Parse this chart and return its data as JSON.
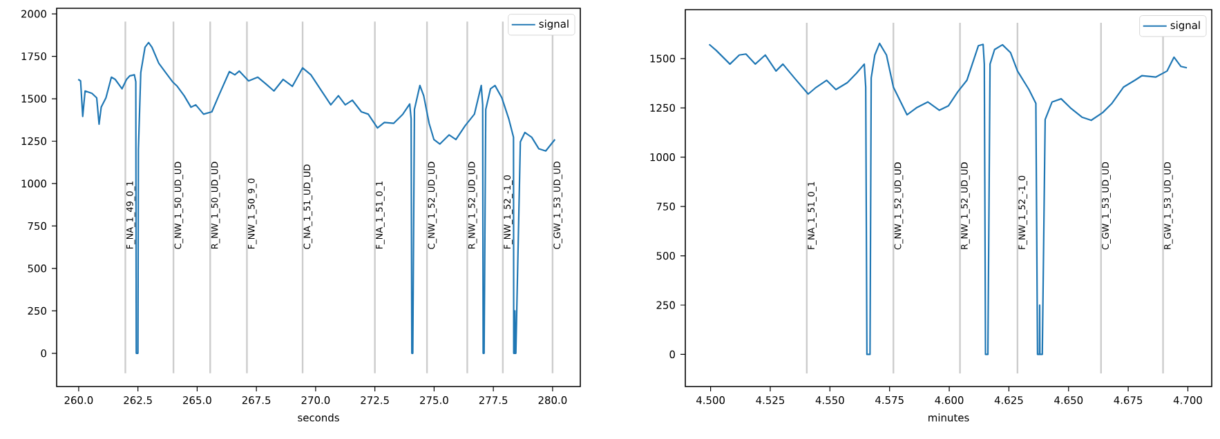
{
  "chart_data": [
    {
      "type": "line",
      "xlabel": "seconds",
      "xlim": [
        259.07,
        281.17
      ],
      "ylim": [
        -196,
        2033
      ],
      "xticks": [
        {
          "value": 260,
          "label": "260.0"
        },
        {
          "value": 262.5,
          "label": "262.5"
        },
        {
          "value": 265,
          "label": "265.0"
        },
        {
          "value": 267.5,
          "label": "267.5"
        },
        {
          "value": 270,
          "label": "270.0"
        },
        {
          "value": 272.5,
          "label": "272.5"
        },
        {
          "value": 275,
          "label": "275.0"
        },
        {
          "value": 277.5,
          "label": "277.5"
        },
        {
          "value": 280,
          "label": "280.0"
        }
      ],
      "yticks": [
        0,
        250,
        500,
        750,
        1000,
        1250,
        1500,
        1750,
        2000
      ],
      "legend": "top right",
      "marker": "none",
      "line_style": "solid",
      "grid": false,
      "series": [
        {
          "name": "signal",
          "color": "#1f77b4",
          "x": [
            259.98,
            260.08,
            260.17,
            260.27,
            260.56,
            260.76,
            260.86,
            260.95,
            261.15,
            261.38,
            261.54,
            261.83,
            262.02,
            262.16,
            262.35,
            262.41,
            262.43,
            262.5,
            262.52,
            262.62,
            262.8,
            262.95,
            263.09,
            263.38,
            263.67,
            263.96,
            264.16,
            264.45,
            264.74,
            264.94,
            265.27,
            265.62,
            265.91,
            266.36,
            266.59,
            266.78,
            267.17,
            267.56,
            267.91,
            268.24,
            268.63,
            269.02,
            269.45,
            269.8,
            270.19,
            270.64,
            270.96,
            271.25,
            271.55,
            271.93,
            272.22,
            272.61,
            272.9,
            273.29,
            273.68,
            273.97,
            274.03,
            274.06,
            274.1,
            274.17,
            274.4,
            274.56,
            274.79,
            274.99,
            275.24,
            275.63,
            275.92,
            276.31,
            276.7,
            276.99,
            277.05,
            277.07,
            277.11,
            277.18,
            277.38,
            277.57,
            277.86,
            278.15,
            278.35,
            278.36,
            278.4,
            278.41,
            278.42,
            278.45,
            278.64,
            278.83,
            279.12,
            279.42,
            279.71,
            280.1
          ],
          "values": [
            1614,
            1605,
            1396,
            1546,
            1532,
            1505,
            1350,
            1450,
            1505,
            1627,
            1614,
            1559,
            1614,
            1635,
            1641,
            1600,
            0,
            0,
            1200,
            1654,
            1804,
            1831,
            1804,
            1709,
            1654,
            1600,
            1573,
            1518,
            1450,
            1464,
            1409,
            1423,
            1518,
            1660,
            1641,
            1663,
            1605,
            1627,
            1586,
            1546,
            1614,
            1573,
            1682,
            1641,
            1559,
            1464,
            1518,
            1464,
            1491,
            1423,
            1409,
            1328,
            1360,
            1355,
            1409,
            1469,
            1382,
            0,
            0,
            1437,
            1578,
            1518,
            1355,
            1260,
            1233,
            1287,
            1260,
            1341,
            1409,
            1578,
            1464,
            0,
            0,
            1437,
            1559,
            1578,
            1505,
            1382,
            1273,
            0,
            0,
            250,
            0,
            0,
            1246,
            1301,
            1273,
            1205,
            1192,
            1260
          ]
        }
      ],
      "ref_lines": [
        {
          "axis": "x",
          "value": 261.97,
          "label": "F_NA_1_49_0_1",
          "color": "#cccccc"
        },
        {
          "axis": "x",
          "value": 264.0,
          "label": "C_NW_1_50_UD_UD",
          "color": "#cccccc"
        },
        {
          "axis": "x",
          "value": 265.55,
          "label": "R_NW_1_50_UD_UD",
          "color": "#cccccc"
        },
        {
          "axis": "x",
          "value": 267.1,
          "label": "F_NW_1_50_9_0",
          "color": "#cccccc"
        },
        {
          "axis": "x",
          "value": 269.45,
          "label": "C_NA_1_51_UD_UD",
          "color": "#cccccc"
        },
        {
          "axis": "x",
          "value": 272.5,
          "label": "F_NA_1_51_0_1",
          "color": "#cccccc"
        },
        {
          "axis": "x",
          "value": 274.7,
          "label": "C_NW_1_52_UD_UD",
          "color": "#cccccc"
        },
        {
          "axis": "x",
          "value": 276.4,
          "label": "R_NW_1_52_UD_UD",
          "color": "#cccccc"
        },
        {
          "axis": "x",
          "value": 277.9,
          "label": "F_NW_1_52_-1_0",
          "color": "#cccccc"
        },
        {
          "axis": "x",
          "value": 280.0,
          "label": "C_GW_1_53_UD_UD",
          "color": "#cccccc"
        }
      ]
    },
    {
      "type": "line",
      "xlabel": "minutes",
      "xlim": [
        4.4894,
        4.71
      ],
      "ylim": [
        -163,
        1748
      ],
      "xticks": [
        {
          "value": 4.5,
          "label": "4.500"
        },
        {
          "value": 4.525,
          "label": "4.525"
        },
        {
          "value": 4.55,
          "label": "4.550"
        },
        {
          "value": 4.575,
          "label": "4.575"
        },
        {
          "value": 4.6,
          "label": "4.600"
        },
        {
          "value": 4.625,
          "label": "4.625"
        },
        {
          "value": 4.65,
          "label": "4.650"
        },
        {
          "value": 4.675,
          "label": "4.675"
        },
        {
          "value": 4.7,
          "label": "4.700"
        }
      ],
      "yticks": [
        0,
        250,
        500,
        750,
        1000,
        1250,
        1500
      ],
      "legend": "top right",
      "marker": "none",
      "line_style": "solid",
      "grid": false,
      "series": [
        {
          "name": "signal",
          "color": "#1f77b4",
          "x": [
            4.4994,
            4.5023,
            4.5081,
            4.512,
            4.5148,
            4.5187,
            4.5229,
            4.5274,
            4.5303,
            4.5351,
            4.5409,
            4.5438,
            4.5486,
            4.5525,
            4.5573,
            4.5611,
            4.5644,
            4.565,
            4.5655,
            4.5668,
            4.5673,
            4.5688,
            4.5708,
            4.5737,
            4.5766,
            4.5823,
            4.5862,
            4.591,
            4.5958,
            4.5997,
            4.6036,
            4.6074,
            4.6122,
            4.6142,
            4.6147,
            4.6152,
            4.6162,
            4.6171,
            4.619,
            4.6223,
            4.6257,
            4.6286,
            4.6334,
            4.6363,
            4.637,
            4.6378,
            4.6379,
            4.638,
            4.639,
            4.6402,
            4.6431,
            4.6469,
            4.6508,
            4.6556,
            4.6595,
            4.6643,
            4.6682,
            4.673,
            4.6778,
            4.6807,
            4.6865,
            4.6913,
            4.6942,
            4.6971,
            4.6996
          ],
          "values": [
            1572,
            1542,
            1472,
            1518,
            1523,
            1472,
            1518,
            1437,
            1472,
            1402,
            1320,
            1350,
            1390,
            1343,
            1378,
            1425,
            1472,
            1355,
            0,
            0,
            1402,
            1518,
            1577,
            1518,
            1355,
            1215,
            1250,
            1280,
            1238,
            1261,
            1332,
            1390,
            1565,
            1572,
            1472,
            0,
            0,
            1472,
            1546,
            1570,
            1530,
            1437,
            1343,
            1273,
            0,
            0,
            250,
            0,
            0,
            1191,
            1280,
            1296,
            1250,
            1203,
            1187,
            1226,
            1273,
            1355,
            1390,
            1413,
            1406,
            1437,
            1507,
            1460,
            1453
          ]
        }
      ],
      "ref_lines": [
        {
          "axis": "x",
          "value": 4.5403,
          "label": "F_NA_1_51_0_1",
          "color": "#cccccc"
        },
        {
          "axis": "x",
          "value": 4.5766,
          "label": "C_NW_1_52_UD_UD",
          "color": "#cccccc"
        },
        {
          "axis": "x",
          "value": 4.6045,
          "label": "R_NW_1_52_UD_UD",
          "color": "#cccccc"
        },
        {
          "axis": "x",
          "value": 4.6286,
          "label": "F_NW_1_52_-1_0",
          "color": "#cccccc"
        },
        {
          "axis": "x",
          "value": 4.6636,
          "label": "C_GW_1_53_UD_UD",
          "color": "#cccccc"
        },
        {
          "axis": "x",
          "value": 4.6896,
          "label": "R_GW_1_53_UD_UD",
          "color": "#cccccc"
        }
      ]
    }
  ]
}
